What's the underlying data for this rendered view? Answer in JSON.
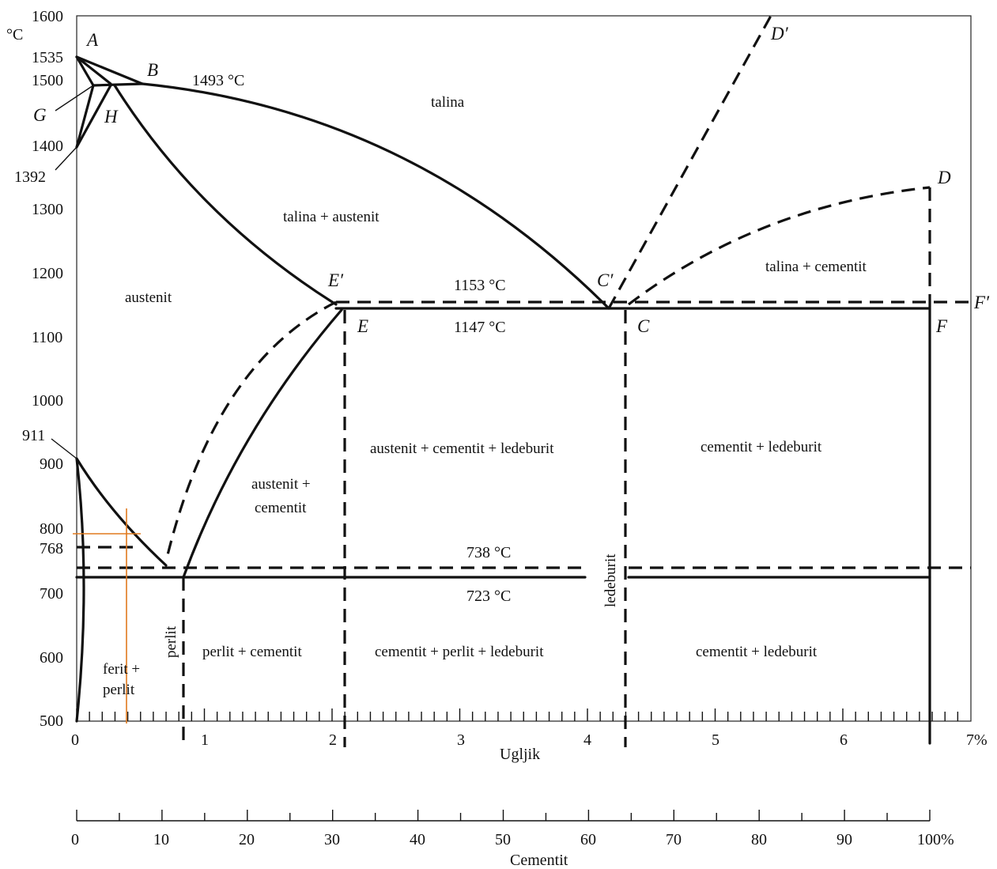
{
  "diagram": {
    "temperature_unit": "°C",
    "y_ticks": [
      "1600",
      "1535",
      "1500",
      "1400",
      "1392",
      "1300",
      "1200",
      "1100",
      "1000",
      "911",
      "900",
      "800",
      "768",
      "700",
      "600",
      "500"
    ],
    "x_ticks": [
      "0",
      "1",
      "2",
      "3",
      "4",
      "5",
      "6",
      "7%"
    ],
    "x_axis_title": "Ugljik",
    "cementit_ticks": [
      "0",
      "10",
      "20",
      "30",
      "40",
      "50",
      "60",
      "70",
      "80",
      "90",
      "100%"
    ],
    "cementit_axis_title": "Cementit",
    "points": {
      "A": "A",
      "B": "B",
      "G": "G",
      "H": "H",
      "E_prime": "E′",
      "E": "E",
      "C_prime": "C′",
      "C": "C",
      "D_prime": "D′",
      "D": "D",
      "F_prime": "F′",
      "F": "F"
    },
    "temperatures": {
      "t1493": "1493 °C",
      "t1153": "1153 °C",
      "t1147": "1147 °C",
      "t738": "738 °C",
      "t723": "723 °C"
    },
    "regions": {
      "talina": "talina",
      "talina_austenit": "talina + austenit",
      "austenit": "austenit",
      "talina_cementit": "talina + cementit",
      "austenit_cementit_line1": "austenit +",
      "austenit_cementit_line2": "cementit",
      "austenit_cementit_ledeburit": "austenit + cementit + ledeburit",
      "cementit_ledeburit_upper": "cementit + ledeburit",
      "ledeburit": "ledeburit",
      "perlit": "perlit",
      "perlit_cementit": "perlit + cementit",
      "cementit_perlit_ledeburit": "cementit + perlit + ledeburit",
      "cementit_ledeburit_lower": "cementit + ledeburit",
      "ferit_perlit_line1": "ferit +",
      "ferit_perlit_line2": "perlit"
    }
  }
}
